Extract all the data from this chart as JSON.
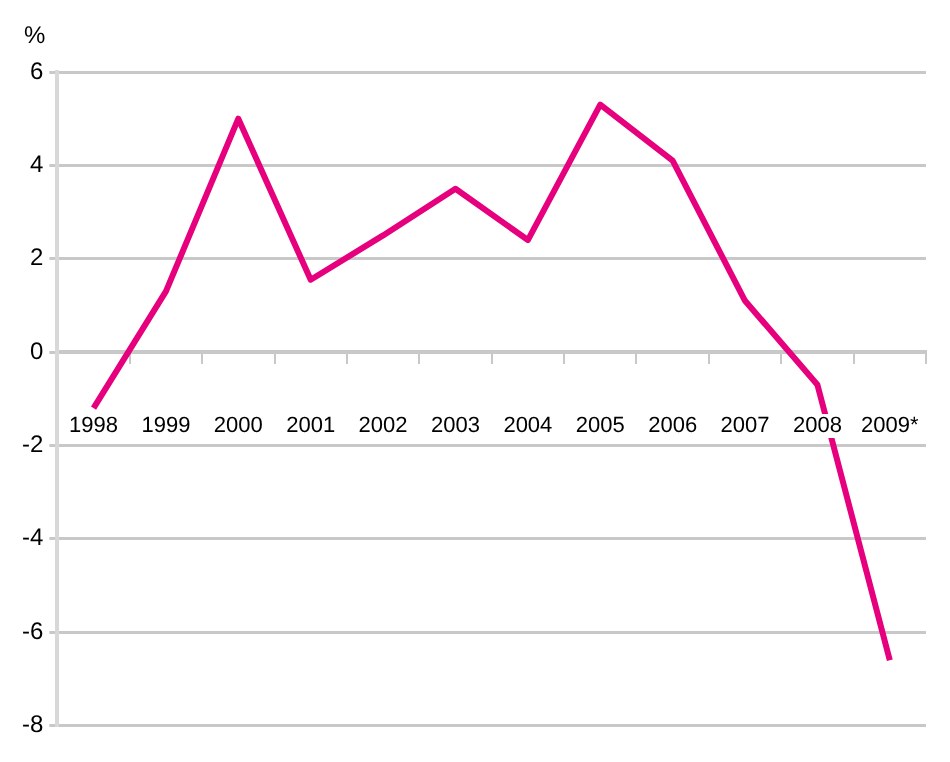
{
  "chart_data": {
    "type": "line",
    "ylabel": "%",
    "categories": [
      "1998",
      "1999",
      "2000",
      "2001",
      "2002",
      "2003",
      "2004",
      "2005",
      "2006",
      "2007",
      "2008",
      "2009*"
    ],
    "series": [
      {
        "color": "#e6007e",
        "values": [
          -1.2,
          1.3,
          5.0,
          1.55,
          2.5,
          3.5,
          2.4,
          5.3,
          4.1,
          1.1,
          -0.7,
          -6.6
        ]
      }
    ],
    "ylim": [
      -8,
      6
    ],
    "yticks": [
      -8,
      -6,
      -4,
      -2,
      0,
      2,
      4,
      6
    ],
    "grid": "y",
    "legend": false,
    "marker": "none",
    "line_style": "solid"
  }
}
